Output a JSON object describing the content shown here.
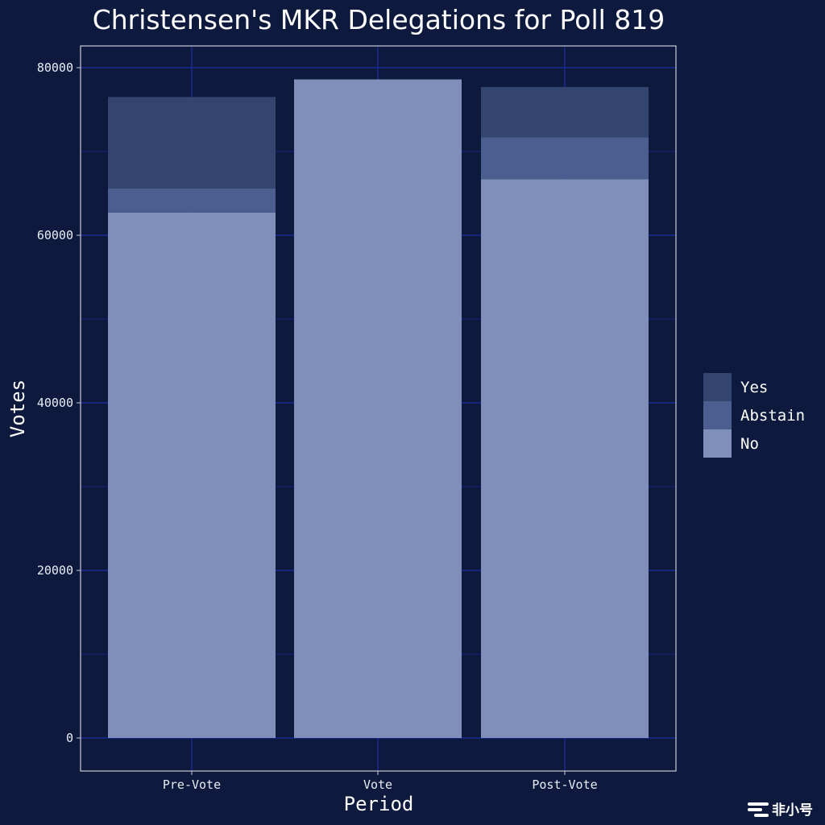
{
  "chart_data": {
    "type": "bar",
    "stacked": true,
    "title": "Christensen's MKR Delegations for Poll 819",
    "xlabel": "Period",
    "ylabel": "Votes",
    "categories": [
      "Pre-Vote",
      "Vote",
      "Post-Vote"
    ],
    "ylim": [
      0,
      86300
    ],
    "yticks": [
      0,
      20000,
      40000,
      60000,
      80000
    ],
    "grid": true,
    "legend_position": "right",
    "series": [
      {
        "name": "No",
        "color": "#7f8fba",
        "values": [
          62700,
          78600,
          66700
        ]
      },
      {
        "name": "Abstain",
        "color": "#4b5e8f",
        "values": [
          2900,
          0,
          5000
        ]
      },
      {
        "name": "Yes",
        "color": "#33446f",
        "values": [
          10900,
          0,
          6000
        ]
      }
    ],
    "legend_order": [
      "Yes",
      "Abstain",
      "No"
    ]
  },
  "watermark": {
    "text": "非小号"
  },
  "colors": {
    "background": "#0e1a3d",
    "grid_major": "#1c2a9a",
    "grid_minor": "#17237a",
    "panel_border": "#c8cbd6"
  }
}
